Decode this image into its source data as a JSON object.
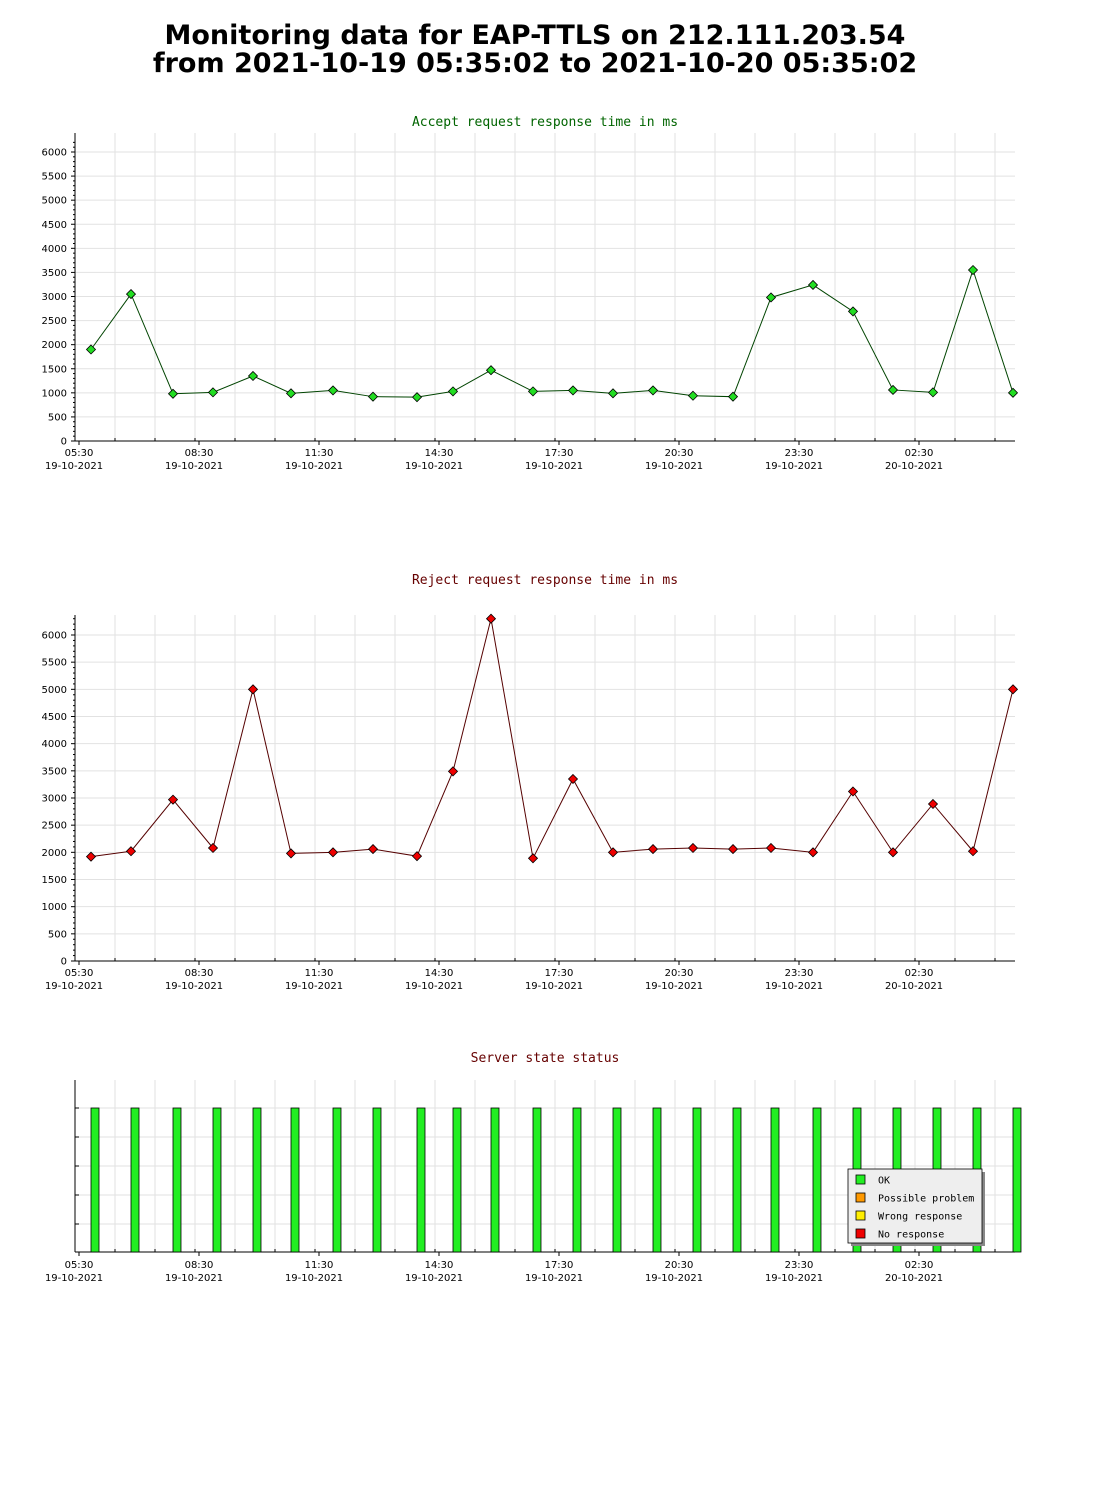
{
  "page": {
    "title_line1": "Monitoring data for EAP-TTLS on 212.111.203.54",
    "title_line2": "from 2021-10-19 05:35:02 to 2021-10-20 05:35:02"
  },
  "x_axis": {
    "labels": [
      {
        "time": "05:30",
        "date": "19-10-2021"
      },
      {
        "time": "08:30",
        "date": "19-10-2021"
      },
      {
        "time": "11:30",
        "date": "19-10-2021"
      },
      {
        "time": "14:30",
        "date": "19-10-2021"
      },
      {
        "time": "17:30",
        "date": "19-10-2021"
      },
      {
        "time": "20:30",
        "date": "19-10-2021"
      },
      {
        "time": "23:30",
        "date": "19-10-2021"
      },
      {
        "time": "02:30",
        "date": "20-10-2021"
      }
    ]
  },
  "chart_data": [
    {
      "type": "line",
      "title": "Accept request response time in ms",
      "title_color": "#006400",
      "line_color": "#004400",
      "marker_color": "#22dd22",
      "ylim": [
        0,
        6300
      ],
      "yticks": [
        0,
        500,
        1000,
        1500,
        2000,
        2500,
        3000,
        3500,
        4000,
        4500,
        5000,
        5500,
        6000
      ],
      "x_hours": [
        0.3,
        1.3,
        2.35,
        3.35,
        4.35,
        5.3,
        6.35,
        7.35,
        8.45,
        9.35,
        10.3,
        11.35,
        12.35,
        13.35,
        14.35,
        15.35,
        16.35,
        17.3,
        18.35,
        19.35,
        20.35,
        21.35,
        22.35,
        23.35
      ],
      "values": [
        1900,
        3050,
        980,
        1010,
        1350,
        990,
        1050,
        920,
        910,
        1030,
        1470,
        1030,
        1050,
        990,
        1050,
        940,
        920,
        2980,
        3240,
        2690,
        1060,
        1010,
        3550,
        1000
      ]
    },
    {
      "type": "line",
      "title": "Reject request response time in ms",
      "title_color": "#660000",
      "line_color": "#550000",
      "marker_color": "#ee0000",
      "ylim": [
        0,
        6400
      ],
      "yticks": [
        0,
        500,
        1000,
        1500,
        2000,
        2500,
        3000,
        3500,
        4000,
        4500,
        5000,
        5500,
        6000
      ],
      "x_hours": [
        0.3,
        1.3,
        2.35,
        3.35,
        4.35,
        5.3,
        6.35,
        7.35,
        8.45,
        9.35,
        10.3,
        11.35,
        12.35,
        13.35,
        14.35,
        15.35,
        16.35,
        17.3,
        18.35,
        19.35,
        20.35,
        21.35,
        22.35,
        23.35
      ],
      "values": [
        1920,
        2020,
        2970,
        2080,
        5000,
        1980,
        2000,
        2060,
        1930,
        3490,
        6300,
        1890,
        3350,
        2000,
        2060,
        2080,
        2060,
        2080,
        2000,
        3120,
        2000,
        2890,
        2020,
        5000
      ]
    },
    {
      "type": "bar",
      "title": "Server state status",
      "title_color": "#660000",
      "x_hours": [
        0.4,
        1.4,
        2.45,
        3.45,
        4.45,
        5.4,
        6.45,
        7.45,
        8.55,
        9.45,
        10.4,
        11.45,
        12.45,
        13.45,
        14.45,
        15.45,
        16.45,
        17.4,
        18.45,
        19.45,
        20.45,
        21.45,
        22.45,
        23.45
      ],
      "values": [
        "OK",
        "OK",
        "OK",
        "OK",
        "OK",
        "OK",
        "OK",
        "OK",
        "OK",
        "OK",
        "OK",
        "OK",
        "OK",
        "OK",
        "OK",
        "OK",
        "OK",
        "OK",
        "OK",
        "OK",
        "OK",
        "OK",
        "OK",
        "OK"
      ],
      "legend": [
        {
          "label": "OK",
          "color": "#22ee22"
        },
        {
          "label": "Possible problem",
          "color": "#ff9900"
        },
        {
          "label": "Wrong response",
          "color": "#ffee00"
        },
        {
          "label": "No response",
          "color": "#ee0000"
        }
      ],
      "legend_position": "bottom-right"
    }
  ]
}
